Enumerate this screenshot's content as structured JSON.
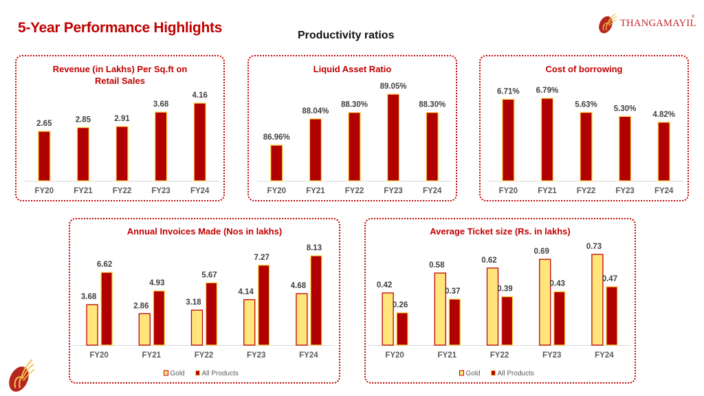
{
  "header": {
    "title": "5-Year Performance Highlights",
    "subtitle": "Productivity ratios",
    "brand_name": "THANGAMAYIL",
    "brand_mark": "®",
    "logo_icon": "thangamayil-peacock-logo-icon"
  },
  "colors": {
    "title_red": "#c00000",
    "bar_dark_red": "#b00000",
    "bar_gold": "#ffe57a",
    "bar_outline_gold": "#ffd54a",
    "bar_outline_red": "#c00000",
    "label_gray": "#404040",
    "axis_gray": "#d9d9d9"
  },
  "chart_data": [
    {
      "id": "revenue",
      "type": "bar",
      "title": "Revenue (in Lakhs) Per Sq.ft on Retail Sales",
      "title_lines": [
        "Revenue (in Lakhs) Per Sq.ft on",
        "Retail Sales"
      ],
      "categories": [
        "FY20",
        "FY21",
        "FY22",
        "FY23",
        "FY24"
      ],
      "series": [
        {
          "name": "Revenue per Sq.ft",
          "values": [
            2.65,
            2.85,
            2.91,
            3.68,
            4.16
          ],
          "labels": [
            "2.65",
            "2.85",
            "2.91",
            "3.68",
            "4.16"
          ]
        }
      ],
      "xlabel": "",
      "ylabel": "",
      "ylim": [
        0,
        4.16
      ],
      "grid": false,
      "legend": "none"
    },
    {
      "id": "liquid",
      "type": "bar",
      "title": "Liquid Asset Ratio",
      "title_lines": [
        "Liquid Asset Ratio"
      ],
      "categories": [
        "FY20",
        "FY21",
        "FY22",
        "FY23",
        "FY24"
      ],
      "series": [
        {
          "name": "Liquid Asset Ratio (%)",
          "values": [
            86.96,
            88.04,
            88.3,
            89.05,
            88.3
          ],
          "labels": [
            "86.96%",
            "88.04%",
            "88.30%",
            "89.05%",
            "88.30%"
          ]
        }
      ],
      "xlabel": "",
      "ylabel": "",
      "ylim": [
        85.5,
        89.05
      ],
      "grid": false,
      "legend": "none"
    },
    {
      "id": "borrowing",
      "type": "bar",
      "title": "Cost of borrowing",
      "title_lines": [
        "Cost of borrowing"
      ],
      "categories": [
        "FY20",
        "FY21",
        "FY22",
        "FY23",
        "FY24"
      ],
      "series": [
        {
          "name": "Cost of borrowing (%)",
          "values": [
            6.71,
            6.79,
            5.63,
            5.3,
            4.82
          ],
          "labels": [
            "6.71%",
            "6.79%",
            "5.63%",
            "5.30%",
            "4.82%"
          ]
        }
      ],
      "xlabel": "",
      "ylabel": "",
      "ylim": [
        0,
        6.79
      ],
      "grid": false,
      "legend": "none"
    },
    {
      "id": "invoices",
      "type": "bar",
      "title": "Annual Invoices Made (Nos in lakhs)",
      "title_lines": [
        "Annual Invoices Made (Nos in lakhs)"
      ],
      "categories": [
        "FY20",
        "FY21",
        "FY22",
        "FY23",
        "FY24"
      ],
      "series": [
        {
          "name": "Gold",
          "values": [
            3.68,
            2.86,
            3.18,
            4.14,
            4.68
          ],
          "labels": [
            "3.68",
            "2.86",
            "3.18",
            "4.14",
            "4.68"
          ]
        },
        {
          "name": "All Products",
          "values": [
            6.62,
            4.93,
            5.67,
            7.27,
            8.13
          ],
          "labels": [
            "6.62",
            "4.93",
            "5.67",
            "7.27",
            "8.13"
          ]
        }
      ],
      "xlabel": "",
      "ylabel": "",
      "ylim": [
        0,
        8.13
      ],
      "grid": false,
      "legend": "bottom"
    },
    {
      "id": "ticket",
      "type": "bar",
      "title": "Average Ticket size (Rs. in lakhs)",
      "title_lines": [
        "Average Ticket size (Rs. in lakhs)"
      ],
      "categories": [
        "FY20",
        "FY21",
        "FY22",
        "FY23",
        "FY24"
      ],
      "series": [
        {
          "name": "Gold",
          "values": [
            0.42,
            0.58,
            0.62,
            0.69,
            0.73
          ],
          "labels": [
            "0.42",
            "0.58",
            "0.62",
            "0.69",
            "0.73"
          ]
        },
        {
          "name": "All Products",
          "values": [
            0.26,
            0.37,
            0.39,
            0.43,
            0.47
          ],
          "labels": [
            "0.26",
            "0.37",
            "0.39",
            "0.43",
            "0.47"
          ]
        }
      ],
      "xlabel": "",
      "ylabel": "",
      "ylim": [
        0,
        0.73
      ],
      "grid": false,
      "legend": "bottom"
    }
  ]
}
